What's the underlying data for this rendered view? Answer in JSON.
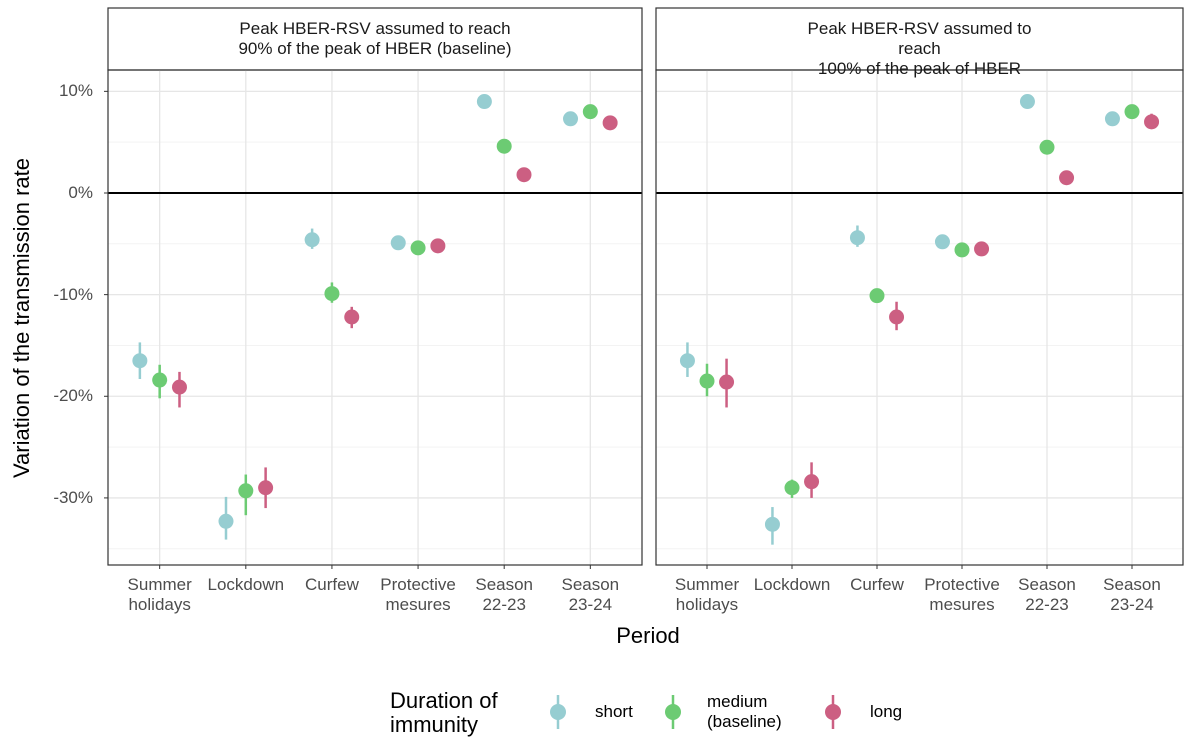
{
  "chart_data": [
    {
      "type": "pointrange",
      "title": "Peak HBER-RSV assumed to reach\n90% of the peak of HBER (baseline)",
      "categories": [
        "Summer\nholidays",
        "Lockdown",
        "Curfew",
        "Protective\nmesures",
        "Season\n22-23",
        "Season\n23-24"
      ],
      "series": [
        {
          "name": "short",
          "color": "#96cdd1",
          "values": [
            -16.5,
            -32.3,
            -4.6,
            -4.9,
            9.0,
            7.3
          ],
          "low": [
            -18.3,
            -34.1,
            -5.5,
            -5.2,
            8.7,
            6.6
          ],
          "high": [
            -14.7,
            -29.9,
            -3.5,
            -4.5,
            9.3,
            7.9
          ]
        },
        {
          "name": "medium\n(baseline)",
          "color": "#6ccb73",
          "values": [
            -18.4,
            -29.3,
            -9.9,
            -5.4,
            4.6,
            8.0
          ],
          "low": [
            -20.2,
            -31.7,
            -10.8,
            -5.8,
            4.2,
            7.4
          ],
          "high": [
            -16.9,
            -27.7,
            -8.8,
            -5.0,
            5.0,
            8.6
          ]
        },
        {
          "name": "long",
          "color": "#cc5f82",
          "values": [
            -19.1,
            -29.0,
            -12.2,
            -5.2,
            1.8,
            6.9
          ],
          "low": [
            -21.1,
            -31.0,
            -13.3,
            -5.6,
            1.3,
            6.3
          ],
          "high": [
            -17.6,
            -27.0,
            -11.2,
            -4.8,
            2.3,
            7.6
          ]
        }
      ],
      "ylim": [
        -36.6,
        12.1
      ],
      "yticks": [
        {
          "value": -30,
          "label": "-30%"
        },
        {
          "value": -20,
          "label": "-20%"
        },
        {
          "value": -10,
          "label": "-10%"
        },
        {
          "value": 0,
          "label": "0%"
        },
        {
          "value": 10,
          "label": "10%"
        }
      ],
      "minor_yticks": [
        -35,
        -25,
        -15,
        -5,
        5
      ],
      "hline": 0,
      "grid": true
    },
    {
      "type": "pointrange",
      "title": "Peak HBER-RSV assumed to reach\n100% of the peak of HBER",
      "categories": [
        "Summer\nholidays",
        "Lockdown",
        "Curfew",
        "Protective\nmesures",
        "Season\n22-23",
        "Season\n23-24"
      ],
      "series": [
        {
          "name": "short",
          "color": "#96cdd1",
          "values": [
            -16.5,
            -32.6,
            -4.4,
            -4.8,
            9.0,
            7.3
          ],
          "low": [
            -18.1,
            -34.6,
            -5.3,
            -5.1,
            8.6,
            6.9
          ],
          "high": [
            -14.7,
            -30.9,
            -3.2,
            -4.5,
            9.4,
            7.6
          ]
        },
        {
          "name": "medium\n(baseline)",
          "color": "#6ccb73",
          "values": [
            -18.5,
            -29.0,
            -10.1,
            -5.6,
            4.5,
            8.0
          ],
          "low": [
            -20.0,
            -30.0,
            -10.5,
            -6.0,
            4.1,
            7.5
          ],
          "high": [
            -16.8,
            -28.2,
            -9.7,
            -5.2,
            4.9,
            8.5
          ]
        },
        {
          "name": "long",
          "color": "#cc5f82",
          "values": [
            -18.6,
            -28.4,
            -12.2,
            -5.5,
            1.5,
            7.0
          ],
          "low": [
            -21.1,
            -30.0,
            -13.5,
            -5.9,
            0.9,
            6.3
          ],
          "high": [
            -16.3,
            -26.5,
            -10.7,
            -5.1,
            2.2,
            7.8
          ]
        }
      ],
      "ylim": [
        -36.6,
        12.1
      ],
      "yticks": [
        {
          "value": -30,
          "label": "-30%"
        },
        {
          "value": -20,
          "label": "-20%"
        },
        {
          "value": -10,
          "label": "-10%"
        },
        {
          "value": 0,
          "label": "0%"
        },
        {
          "value": 10,
          "label": "10%"
        }
      ],
      "minor_yticks": [
        -35,
        -25,
        -15,
        -5,
        5
      ],
      "hline": 0,
      "grid": true
    }
  ],
  "x_label": "Period",
  "y_label": "Variation of the transmission rate",
  "legend_title": "Duration of\nimmunity"
}
